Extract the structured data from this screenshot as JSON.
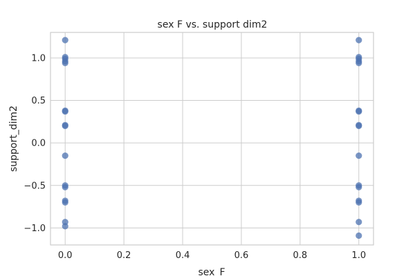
{
  "chart_data": {
    "type": "scatter",
    "title": "sex F vs. support dim2",
    "xlabel": "sex_F",
    "ylabel": "support_dim2",
    "xlim": [
      -0.05,
      1.05
    ],
    "ylim": [
      -1.2,
      1.3
    ],
    "xticks": [
      0.0,
      0.2,
      0.4,
      0.6,
      0.8,
      1.0
    ],
    "xtick_labels": [
      "0.0",
      "0.2",
      "0.4",
      "0.6",
      "0.8",
      "1.0"
    ],
    "yticks": [
      -1.0,
      -0.5,
      0.0,
      0.5,
      1.0
    ],
    "ytick_labels": [
      "−1.0",
      "−0.5",
      "0.0",
      "0.5",
      "1.0"
    ],
    "grid": true,
    "marker_color": "#4c72b0",
    "points": [
      {
        "x": 0,
        "y": 1.21
      },
      {
        "x": 0,
        "y": 1.01
      },
      {
        "x": 0,
        "y": 0.99
      },
      {
        "x": 0,
        "y": 0.96
      },
      {
        "x": 0,
        "y": 0.94
      },
      {
        "x": 0,
        "y": 0.38
      },
      {
        "x": 0,
        "y": 0.37
      },
      {
        "x": 0,
        "y": 0.21
      },
      {
        "x": 0,
        "y": 0.2
      },
      {
        "x": 0,
        "y": -0.15
      },
      {
        "x": 0,
        "y": -0.5
      },
      {
        "x": 0,
        "y": -0.52
      },
      {
        "x": 0,
        "y": -0.68
      },
      {
        "x": 0,
        "y": -0.7
      },
      {
        "x": 0,
        "y": -0.93
      },
      {
        "x": 0,
        "y": -0.98
      },
      {
        "x": 1,
        "y": 1.21
      },
      {
        "x": 1,
        "y": 1.01
      },
      {
        "x": 1,
        "y": 0.99
      },
      {
        "x": 1,
        "y": 0.96
      },
      {
        "x": 1,
        "y": 0.94
      },
      {
        "x": 1,
        "y": 0.38
      },
      {
        "x": 1,
        "y": 0.37
      },
      {
        "x": 1,
        "y": 0.21
      },
      {
        "x": 1,
        "y": 0.2
      },
      {
        "x": 1,
        "y": -0.15
      },
      {
        "x": 1,
        "y": -0.5
      },
      {
        "x": 1,
        "y": -0.52
      },
      {
        "x": 1,
        "y": -0.68
      },
      {
        "x": 1,
        "y": -0.7
      },
      {
        "x": 1,
        "y": -0.93
      },
      {
        "x": 1,
        "y": -1.09
      }
    ]
  }
}
